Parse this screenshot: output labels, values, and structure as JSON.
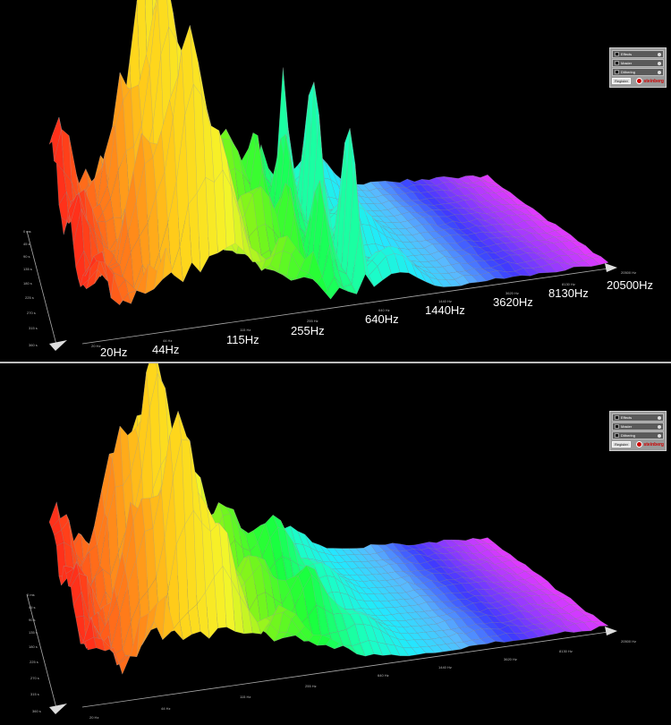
{
  "top_panel": {
    "frequency_labels": [
      "20Hz",
      "44Hz",
      "115Hz",
      "255Hz",
      "640Hz",
      "1440Hz",
      "3620Hz",
      "8130Hz",
      "20500Hz"
    ],
    "small_frequency_labels": [
      "20 Hz",
      "44 Hz",
      "115 Hz",
      "255 Hz",
      "640 Hz",
      "1440 Hz",
      "3620 Hz",
      "8130 Hz",
      "20500 Hz"
    ],
    "time_axis_labels": [
      "0 ms",
      "45 s",
      "90 s",
      "135 s",
      "180 s",
      "225 s",
      "270 s",
      "315 s",
      "360 s"
    ],
    "controls": {
      "effects_label": "Effects",
      "master_label": "Master",
      "dithering_label": "Dithering",
      "register_label": "Register",
      "brand_label": "steinberg"
    }
  },
  "bottom_panel": {
    "small_frequency_labels": [
      "20 Hz",
      "44 Hz",
      "115 Hz",
      "255 Hz",
      "640 Hz",
      "1440 Hz",
      "3620 Hz",
      "8130 Hz",
      "20500 Hz"
    ],
    "time_axis_labels": [
      "0 ms",
      "45 s",
      "90 s",
      "135 s",
      "180 s",
      "225 s",
      "270 s",
      "315 s",
      "360 s"
    ],
    "controls": {
      "effects_label": "Effects",
      "master_label": "Master",
      "dithering_label": "Dithering",
      "register_label": "Register",
      "brand_label": "steinberg"
    }
  },
  "colors": {
    "background": "#000000",
    "divider": "#bdbdbd",
    "grid_line": "#9a9a9a",
    "spectrum_gradient": [
      "#ff2a1a",
      "#ff7a1a",
      "#ffd21a",
      "#f5f52a",
      "#7cf51a",
      "#1aff3a",
      "#1affc0",
      "#22e8ff",
      "#5ab8ff",
      "#3a3aff",
      "#9a3aff",
      "#e63aff"
    ]
  }
}
